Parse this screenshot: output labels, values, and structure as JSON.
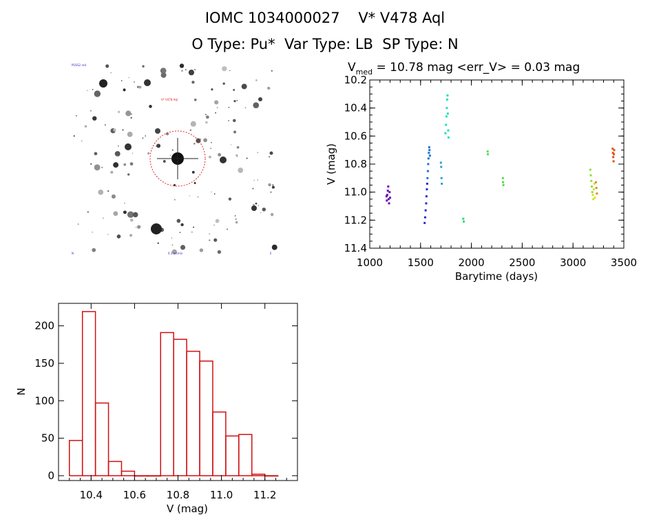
{
  "header": {
    "title_line1": "IOMC 1034000027    V* V478 Aql",
    "title_line2": "O Type: Pu*  Var Type: LB  SP Type: N"
  },
  "finder": {
    "label_top_left": "POSS2 red",
    "label_target": "V* V478 Aql",
    "label_bottom_left": "N",
    "label_bottom_center": "6.3 arcmin",
    "label_bottom_right": "E"
  },
  "chart_data": [
    {
      "type": "scatter",
      "title_main": "V",
      "title_sub": "med",
      "title_rest": " = 10.78 mag <err_V> = 0.03 mag",
      "xlabel": "Barytime (days)",
      "ylabel": "V (mag)",
      "xlim": [
        1000,
        3500
      ],
      "ylim": [
        10.2,
        11.4
      ],
      "y_inverted": true,
      "xticks": [
        1000,
        1500,
        2000,
        2500,
        3000,
        3500
      ],
      "yticks": [
        "10.2",
        "10.4",
        "10.6",
        "10.8",
        "11.0",
        "11.2",
        "11.4"
      ],
      "grid": false,
      "groups": [
        {
          "color": "#6a0dad",
          "points": [
            [
              1165,
              11.03
            ],
            [
              1168,
              11.06
            ],
            [
              1172,
              11.02
            ],
            [
              1178,
              10.99
            ],
            [
              1182,
              10.96
            ],
            [
              1186,
              11.05
            ],
            [
              1190,
              11.08
            ],
            [
              1195,
              11.0
            ],
            [
              1200,
              11.04
            ]
          ]
        },
        {
          "color": "#2a2acb",
          "points": [
            [
              1540,
              11.22
            ],
            [
              1545,
              11.18
            ],
            [
              1550,
              11.13
            ],
            [
              1555,
              11.08
            ],
            [
              1558,
              11.03
            ],
            [
              1562,
              10.98
            ],
            [
              1565,
              10.94
            ]
          ]
        },
        {
          "color": "#1e6fd9",
          "points": [
            [
              1568,
              10.9
            ],
            [
              1572,
              10.85
            ],
            [
              1575,
              10.8
            ],
            [
              1578,
              10.76
            ],
            [
              1582,
              10.72
            ],
            [
              1585,
              10.68
            ],
            [
              1588,
              10.7
            ],
            [
              1592,
              10.74
            ]
          ]
        },
        {
          "color": "#2aa0e0",
          "points": [
            [
              1700,
              10.79
            ],
            [
              1703,
              10.82
            ],
            [
              1706,
              10.9
            ],
            [
              1709,
              10.94
            ]
          ]
        },
        {
          "color": "#1fe0b8",
          "points": [
            [
              1745,
              10.58
            ],
            [
              1750,
              10.52
            ],
            [
              1755,
              10.46
            ],
            [
              1758,
              10.4
            ],
            [
              1762,
              10.34
            ],
            [
              1765,
              10.31
            ],
            [
              1768,
              10.44
            ],
            [
              1772,
              10.56
            ],
            [
              1775,
              10.61
            ]
          ]
        },
        {
          "color": "#2be06a",
          "points": [
            [
              1920,
              11.19
            ],
            [
              1925,
              11.21
            ]
          ]
        },
        {
          "color": "#4ee05a",
          "points": [
            [
              2160,
              10.71
            ],
            [
              2162,
              10.73
            ]
          ]
        },
        {
          "color": "#5ad94e",
          "points": [
            [
              2310,
              10.9
            ],
            [
              2312,
              10.93
            ],
            [
              2315,
              10.95
            ]
          ]
        },
        {
          "color": "#8ee03a",
          "points": [
            [
              3170,
              10.84
            ],
            [
              3175,
              10.88
            ],
            [
              3180,
              10.92
            ],
            [
              3185,
              10.96
            ],
            [
              3190,
              11.0
            ]
          ]
        },
        {
          "color": "#d4e02a",
          "points": [
            [
              3195,
              11.02
            ],
            [
              3200,
              11.05
            ],
            [
              3205,
              10.98
            ],
            [
              3210,
              10.94
            ],
            [
              3215,
              11.04
            ]
          ]
        },
        {
          "color": "#e08a1e",
          "points": [
            [
              3225,
              10.93
            ],
            [
              3230,
              10.97
            ],
            [
              3235,
              11.01
            ]
          ]
        },
        {
          "color": "#e0501a",
          "points": [
            [
              3390,
              10.69
            ],
            [
              3393,
              10.72
            ],
            [
              3396,
              10.75
            ],
            [
              3399,
              10.78
            ],
            [
              3402,
              10.73
            ],
            [
              3405,
              10.7
            ]
          ]
        }
      ]
    },
    {
      "type": "bar",
      "xlabel": "V (mag)",
      "ylabel": "N",
      "xlim": [
        10.25,
        11.35
      ],
      "ylim": [
        0,
        230
      ],
      "xticks": [
        "10.4",
        "10.6",
        "10.8",
        "11.0",
        "11.2"
      ],
      "yticks": [
        "0",
        "50",
        "100",
        "150",
        "200"
      ],
      "bin_width": 0.06,
      "bin_starts": [
        10.3,
        10.36,
        10.42,
        10.48,
        10.54,
        10.6,
        10.66,
        10.72,
        10.78,
        10.84,
        10.9,
        10.96,
        11.02,
        11.08,
        11.14,
        11.2
      ],
      "values": [
        47,
        219,
        97,
        19,
        6,
        0,
        0,
        191,
        182,
        166,
        153,
        85,
        53,
        55,
        2,
        0
      ],
      "bar_color": "#d01010"
    }
  ]
}
